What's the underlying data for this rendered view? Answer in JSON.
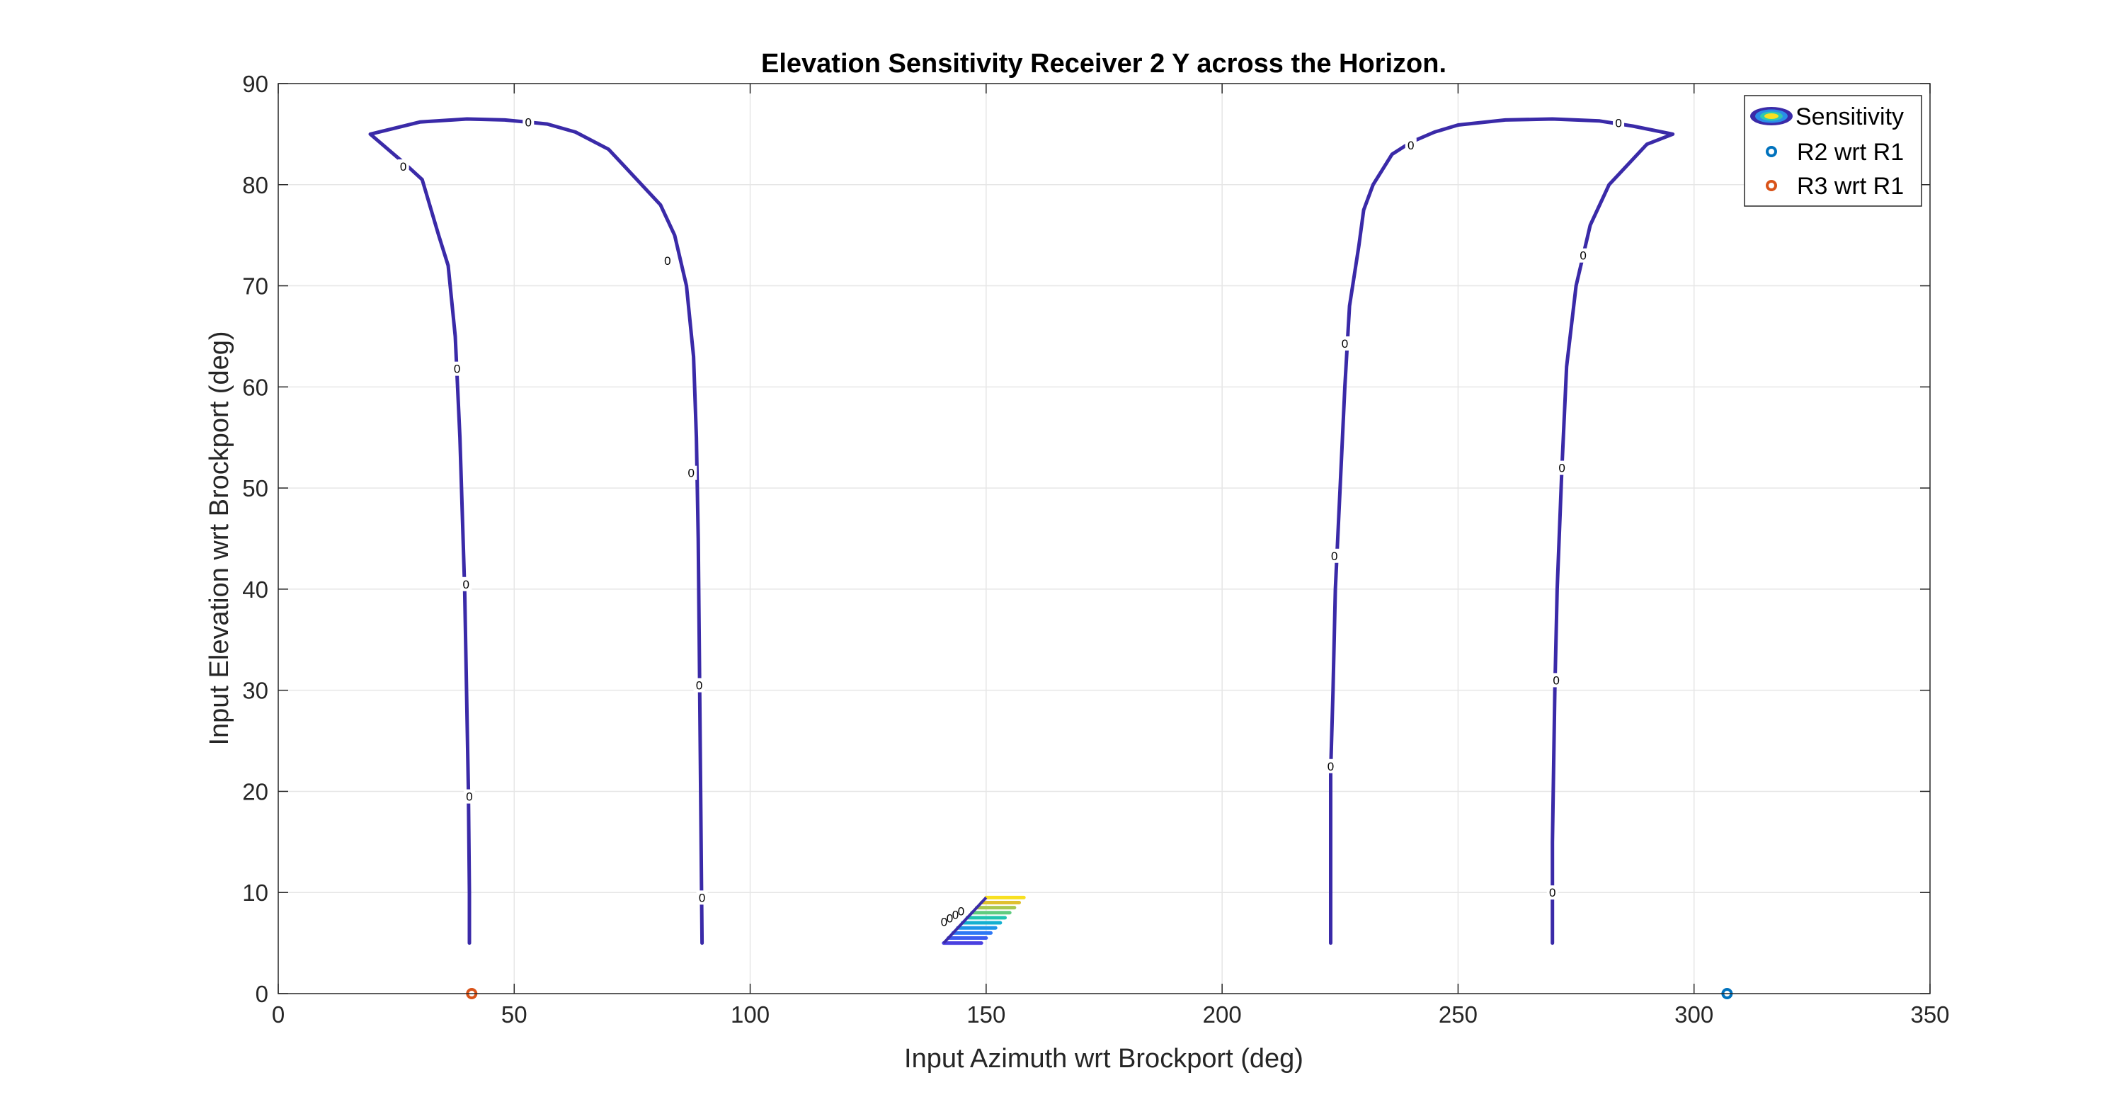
{
  "chart_data": {
    "type": "contour",
    "title": "Elevation Sensitivity Receiver 2 Y across the Horizon.",
    "xlabel": "Input Azimuth wrt Brockport (deg)",
    "ylabel": "Input Elevation wrt Brockport (deg)",
    "xlim": [
      0,
      350
    ],
    "ylim": [
      0,
      90
    ],
    "xticks": [
      "0",
      "50",
      "100",
      "150",
      "200",
      "250",
      "300",
      "350"
    ],
    "yticks": [
      "0",
      "10",
      "20",
      "30",
      "40",
      "50",
      "60",
      "70",
      "80",
      "90"
    ],
    "grid": true,
    "legend_position": "top-right",
    "legend": [
      {
        "label": "Sensitivity",
        "kind": "contour"
      },
      {
        "label": "R2 wrt R1",
        "kind": "marker"
      },
      {
        "label": "R3 wrt R1",
        "kind": "marker"
      }
    ],
    "colors": {
      "zero_contour": "#3a2aa8",
      "r2": "#0072BD",
      "r3": "#D95319",
      "grid": "#e6e6e6",
      "axis": "#262626"
    },
    "contour_label": "0",
    "contours": [
      {
        "name": "zero-contour-left",
        "level": 0,
        "points": [
          [
            40.5,
            5
          ],
          [
            40.5,
            10
          ],
          [
            40.3,
            20
          ],
          [
            39.5,
            40
          ],
          [
            38.5,
            55
          ],
          [
            37.5,
            65
          ],
          [
            36,
            72
          ],
          [
            34,
            75
          ],
          [
            30.5,
            80.5
          ],
          [
            27,
            82
          ],
          [
            19.5,
            85
          ],
          [
            30,
            86.2
          ],
          [
            40,
            86.5
          ],
          [
            48,
            86.4
          ],
          [
            57,
            86
          ],
          [
            63,
            85.2
          ],
          [
            70,
            83.5
          ],
          [
            77,
            80
          ],
          [
            81,
            78
          ],
          [
            84,
            75
          ],
          [
            86.5,
            70
          ],
          [
            88,
            63
          ],
          [
            88.6,
            55
          ],
          [
            89,
            45
          ],
          [
            89.2,
            35
          ],
          [
            89.5,
            20
          ],
          [
            89.7,
            10
          ],
          [
            89.8,
            5
          ]
        ]
      },
      {
        "name": "zero-contour-right",
        "level": 0,
        "points": [
          [
            223,
            5
          ],
          [
            223,
            10
          ],
          [
            223,
            22
          ],
          [
            223.5,
            30
          ],
          [
            224,
            40
          ],
          [
            225,
            50
          ],
          [
            226,
            60
          ],
          [
            227,
            68
          ],
          [
            229,
            74
          ],
          [
            230,
            77.5
          ],
          [
            232,
            80
          ],
          [
            236,
            83
          ],
          [
            240,
            84.2
          ],
          [
            245,
            85.2
          ],
          [
            250,
            85.9
          ],
          [
            260,
            86.4
          ],
          [
            270,
            86.5
          ],
          [
            280,
            86.3
          ],
          [
            287,
            85.8
          ],
          [
            295.5,
            85
          ],
          [
            290,
            84
          ],
          [
            282,
            80
          ],
          [
            278,
            76
          ],
          [
            275,
            70
          ],
          [
            273,
            62
          ],
          [
            272,
            52
          ],
          [
            271,
            40
          ],
          [
            270.5,
            30
          ],
          [
            270,
            15
          ],
          [
            270,
            5
          ]
        ]
      }
    ],
    "contour_labels": [
      [
        40.5,
        19.5
      ],
      [
        39.8,
        40.5
      ],
      [
        37.9,
        61.8
      ],
      [
        26.5,
        81.8
      ],
      [
        53,
        86.2
      ],
      [
        82.5,
        72.5
      ],
      [
        87.5,
        51.5
      ],
      [
        89.2,
        30.5
      ],
      [
        89.8,
        9.5
      ],
      [
        223,
        22.5
      ],
      [
        223.8,
        43.3
      ],
      [
        226,
        64.3
      ],
      [
        240,
        83.9
      ],
      [
        284,
        86.1
      ],
      [
        276.5,
        73
      ],
      [
        272,
        52
      ],
      [
        270.8,
        31
      ],
      [
        270,
        10
      ]
    ],
    "colored_cluster": {
      "name": "sensitivity-cluster",
      "levels": [
        {
          "x0": 141,
          "x1": 149,
          "y": 5.0,
          "color": "#4a40e0"
        },
        {
          "x0": 142,
          "x1": 150,
          "y": 5.5,
          "color": "#3d5cf0"
        },
        {
          "x0": 143,
          "x1": 151,
          "y": 6.0,
          "color": "#2e78f5"
        },
        {
          "x0": 144,
          "x1": 152,
          "y": 6.5,
          "color": "#1e95e8"
        },
        {
          "x0": 145,
          "x1": 153,
          "y": 7.0,
          "color": "#14b0d0"
        },
        {
          "x0": 146,
          "x1": 154,
          "y": 7.5,
          "color": "#20c4b0"
        },
        {
          "x0": 147,
          "x1": 155,
          "y": 8.0,
          "color": "#60cc80"
        },
        {
          "x0": 148,
          "x1": 156,
          "y": 8.5,
          "color": "#a8c850"
        },
        {
          "x0": 149,
          "x1": 157,
          "y": 9.0,
          "color": "#e0c030"
        },
        {
          "x0": 150,
          "x1": 158,
          "y": 9.5,
          "color": "#f8e020"
        }
      ]
    },
    "points": [
      {
        "name": "R2 wrt R1",
        "x": 307,
        "y": 0
      },
      {
        "name": "R3 wrt R1",
        "x": 41,
        "y": 0
      }
    ]
  }
}
